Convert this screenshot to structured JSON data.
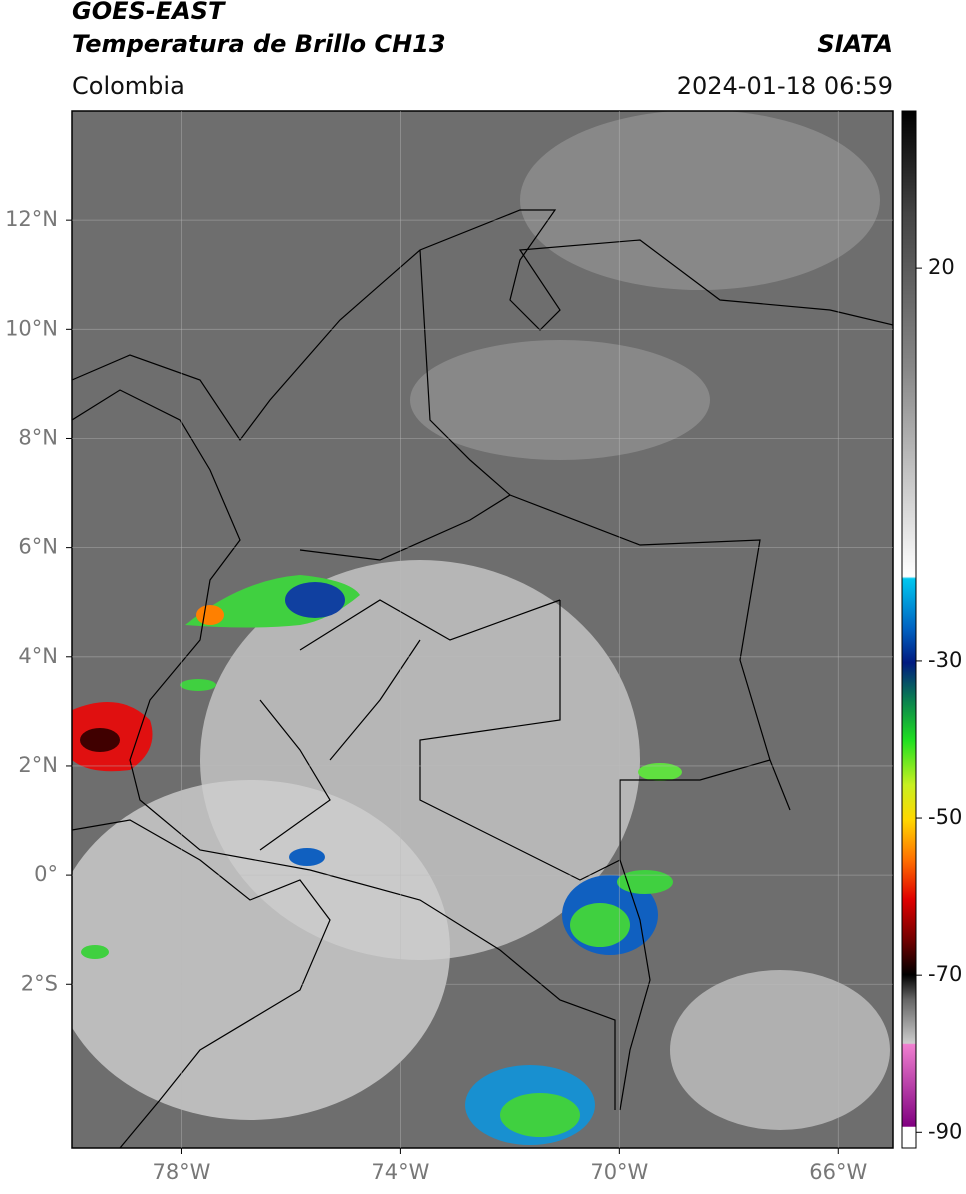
{
  "header": {
    "title": "GOES-EAST",
    "subtitle": "Temperatura de Brillo CH13",
    "source": "SIATA",
    "region": "Colombia",
    "datetime": "2024-01-18 06:59"
  },
  "map": {
    "xlim": [
      -80,
      -65
    ],
    "ylim": [
      -5,
      14
    ],
    "xticks": [
      {
        "value": -78,
        "label": "78°W"
      },
      {
        "value": -74,
        "label": "74°W"
      },
      {
        "value": -70,
        "label": "70°W"
      },
      {
        "value": -66,
        "label": "66°W"
      }
    ],
    "yticks": [
      {
        "value": -2,
        "label": "2°S"
      },
      {
        "value": 0,
        "label": "0°"
      },
      {
        "value": 2,
        "label": "2°N"
      },
      {
        "value": 4,
        "label": "4°N"
      },
      {
        "value": 6,
        "label": "6°N"
      },
      {
        "value": 8,
        "label": "8°N"
      },
      {
        "value": 10,
        "label": "10°N"
      },
      {
        "value": 12,
        "label": "12°N"
      }
    ],
    "grid": true
  },
  "colorbar": {
    "lim": [
      -92,
      40
    ],
    "ticks": [
      20,
      -30,
      -50,
      -70,
      -90
    ]
  }
}
